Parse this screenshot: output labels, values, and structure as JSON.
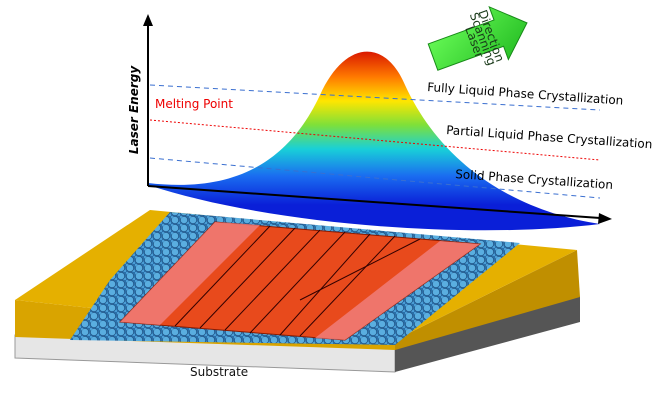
{
  "axis": {
    "label": "Laser Energy"
  },
  "melting_point": "Melting Point",
  "levels": [
    {
      "label": "Fully Liquid Phase Crystallization"
    },
    {
      "label": "Partial Liquid Phase Crystallization"
    },
    {
      "label": "Solid Phase Crystallization"
    }
  ],
  "arrow": {
    "lines": [
      "Laser",
      "Scanning",
      "Direction"
    ]
  },
  "substrate": "Substrate"
}
